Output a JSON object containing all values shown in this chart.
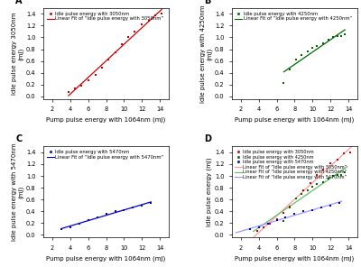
{
  "panel_A": {
    "label": "A",
    "scatter_color": "#cc0000",
    "line_color": "#cc0000",
    "scatter_x": [
      3.8,
      4.5,
      5.2,
      6.0,
      6.8,
      7.5,
      8.2,
      9.0,
      9.8,
      10.5,
      11.2,
      12.0,
      12.8,
      13.5,
      14.2
    ],
    "scatter_y": [
      0.07,
      0.13,
      0.18,
      0.27,
      0.37,
      0.48,
      0.62,
      0.75,
      0.88,
      1.01,
      1.1,
      1.22,
      1.28,
      1.38,
      1.4
    ],
    "ylabel": "Idle pulse energy 3050nm\n(mJ)",
    "xlabel": "Pump pulse energy with 1064nm (mJ)",
    "legend1": "Idle pulse energy with 3050nm",
    "legend2": "Linear Fit of “Idle pulse energy with 3050nm”",
    "xlim": [
      1,
      15
    ],
    "ylim": [
      -0.05,
      1.5
    ],
    "xticks": [
      2,
      4,
      6,
      8,
      10,
      12,
      14
    ],
    "yticks": [
      0.0,
      0.2,
      0.4,
      0.6,
      0.8,
      1.0,
      1.2,
      1.4
    ]
  },
  "panel_B": {
    "label": "B",
    "scatter_color": "#006600",
    "line_color": "#006600",
    "scatter_x": [
      6.8,
      7.5,
      8.2,
      8.8,
      9.5,
      10.0,
      10.5,
      11.2,
      11.8,
      12.3,
      12.8,
      13.2,
      13.6
    ],
    "scatter_y": [
      0.23,
      0.46,
      0.62,
      0.7,
      0.76,
      0.82,
      0.86,
      0.9,
      0.96,
      1.0,
      1.02,
      1.02,
      1.06
    ],
    "ylabel": "Idle pulse energy with 4250nm\n(mJ)",
    "xlabel": "Pump pulse energy with 1064nm (mJ)",
    "legend1": "Idle pulse energy with 4250nm",
    "legend2": "Linear Fit of “Idle pulse energy with 4250nm”",
    "xlim": [
      1,
      15
    ],
    "ylim": [
      -0.05,
      1.5
    ],
    "xticks": [
      2,
      4,
      6,
      8,
      10,
      12,
      14
    ],
    "yticks": [
      0.0,
      0.2,
      0.4,
      0.6,
      0.8,
      1.0,
      1.2,
      1.4
    ]
  },
  "panel_C": {
    "label": "C",
    "scatter_color": "#0000cc",
    "line_color": "#0000cc",
    "scatter_x": [
      3.0,
      4.0,
      5.0,
      6.0,
      7.0,
      8.0,
      9.0,
      10.0,
      11.0,
      12.0,
      13.0
    ],
    "scatter_y": [
      0.09,
      0.13,
      0.18,
      0.25,
      0.3,
      0.36,
      0.4,
      0.42,
      0.47,
      0.49,
      0.54
    ],
    "ylabel": "Idle pulse energy with 5470nm\n(mJ)",
    "xlabel": "Pump pulse energy with 1064nm (mJ)",
    "legend1": "Idle pulse energy with 5470nm",
    "legend2": "Linear Fit of “Idle pulse energy with 5470nm”",
    "xlim": [
      1,
      15
    ],
    "ylim": [
      -0.05,
      1.5
    ],
    "xticks": [
      2,
      4,
      6,
      8,
      10,
      12,
      14
    ],
    "yticks": [
      0.0,
      0.2,
      0.4,
      0.6,
      0.8,
      1.0,
      1.2,
      1.4
    ]
  },
  "panel_D": {
    "label": "D",
    "colors": [
      "#cc0000",
      "#006600",
      "#0000cc"
    ],
    "line_colors": [
      "#ff9999",
      "#66bb66",
      "#9999ff"
    ],
    "labels": [
      "3050nm",
      "4250nm",
      "5470nm"
    ],
    "scatter_x_3050": [
      3.8,
      4.5,
      5.2,
      6.0,
      6.8,
      7.5,
      8.2,
      9.0,
      9.8,
      10.5,
      11.2,
      12.0,
      12.8,
      13.5,
      14.2
    ],
    "scatter_y_3050": [
      0.07,
      0.13,
      0.18,
      0.27,
      0.37,
      0.48,
      0.62,
      0.75,
      0.88,
      1.01,
      1.1,
      1.22,
      1.28,
      1.38,
      1.4
    ],
    "scatter_x_4250": [
      6.8,
      7.5,
      8.2,
      8.8,
      9.5,
      10.0,
      10.5,
      11.2,
      11.8,
      12.3,
      12.8,
      13.2,
      13.6
    ],
    "scatter_y_4250": [
      0.23,
      0.46,
      0.62,
      0.7,
      0.76,
      0.82,
      0.86,
      0.9,
      0.96,
      1.0,
      1.02,
      1.02,
      1.06
    ],
    "scatter_x_5470": [
      3.0,
      4.0,
      5.0,
      6.0,
      7.0,
      8.0,
      9.0,
      10.0,
      11.0,
      12.0,
      13.0
    ],
    "scatter_y_5470": [
      0.09,
      0.13,
      0.18,
      0.25,
      0.3,
      0.36,
      0.4,
      0.42,
      0.47,
      0.49,
      0.54
    ],
    "ylabel": "Idle pulse energy (mJ)",
    "xlabel": "Pump pulse energy with 1064nm (mJ)",
    "xlim": [
      1,
      15
    ],
    "ylim": [
      -0.05,
      1.5
    ],
    "xticks": [
      2,
      4,
      6,
      8,
      10,
      12,
      14
    ],
    "yticks": [
      0.0,
      0.2,
      0.4,
      0.6,
      0.8,
      1.0,
      1.2,
      1.4
    ]
  },
  "bg_color": "#ffffff",
  "font_size_label": 5.0,
  "font_size_tick": 4.8,
  "font_size_legend": 3.8,
  "marker_size": 4.0,
  "line_width": 0.9
}
